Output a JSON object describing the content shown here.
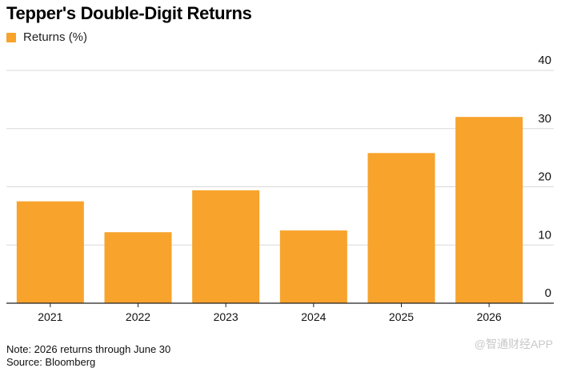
{
  "header": {
    "title": "Tepper's Double-Digit Returns"
  },
  "legend": {
    "label": "Returns (%)"
  },
  "footer": {
    "note": "Note: 2026 returns through June 30",
    "source": "Source: Bloomberg"
  },
  "watermark": "@智通财经APP",
  "colors": {
    "bar": "#F7A32C",
    "grid": "#d9d9d9",
    "axis": "#222222"
  },
  "chart_data": {
    "type": "bar",
    "title": "Tepper's Double-Digit Returns",
    "xlabel": "",
    "ylabel": "",
    "categories": [
      "2021",
      "2022",
      "2023",
      "2024",
      "2025",
      "2026"
    ],
    "series": [
      {
        "name": "Returns (%)",
        "values": [
          17.5,
          12.2,
          19.4,
          12.5,
          25.8,
          32.0
        ]
      }
    ],
    "ylim": [
      0,
      40
    ],
    "yticks": [
      0,
      10,
      20,
      30,
      40
    ],
    "grid": true,
    "y_axis_position": "right",
    "legend_position": "top-left"
  }
}
